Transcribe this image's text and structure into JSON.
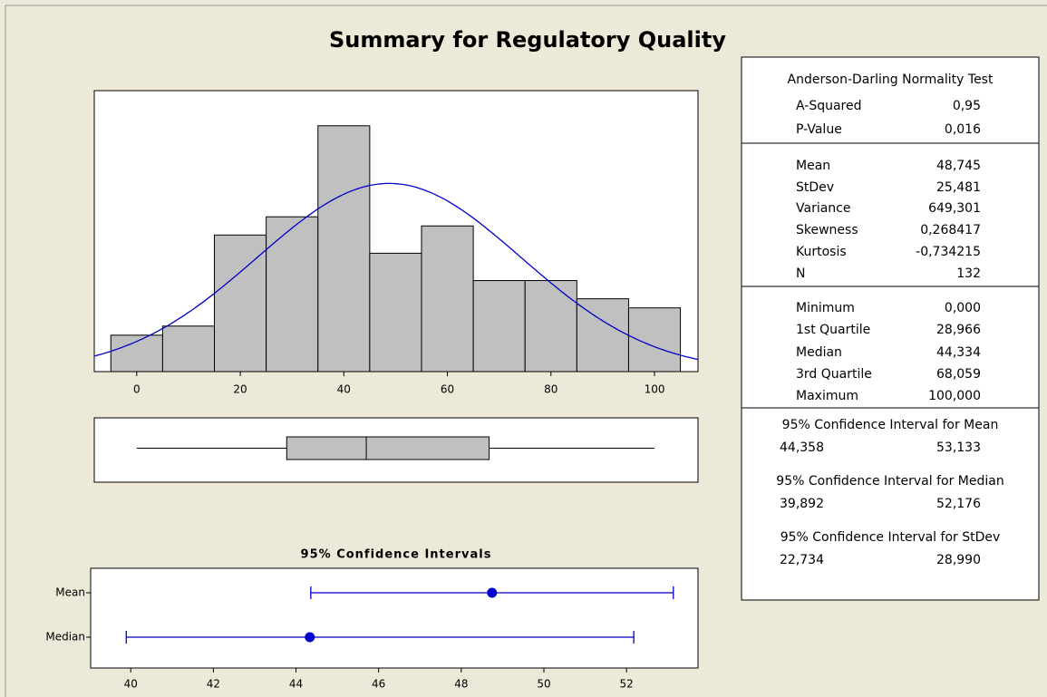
{
  "title": "Summary for Regulatory Quality",
  "chart_data": [
    {
      "type": "histogram",
      "bins": [
        -5,
        5,
        15,
        25,
        35,
        45,
        55,
        65,
        75,
        85,
        95,
        105
      ],
      "counts": [
        4,
        5,
        15,
        17,
        27,
        13,
        16,
        10,
        10,
        8,
        7
      ],
      "color": "#c0c0c0",
      "curve_color": "#0000cc",
      "xlim": [
        -8.2,
        108.4
      ],
      "xticks": [
        0,
        20,
        40,
        60,
        80,
        100
      ]
    },
    {
      "type": "box",
      "color": "#c0c0c0"
    },
    {
      "type": "interval",
      "title": "95% Confidence Intervals",
      "categories": [
        "Mean",
        "Median"
      ],
      "color": "#0000cc",
      "xlim": [
        39.03,
        53.73
      ],
      "xticks": [
        40,
        42,
        44,
        46,
        48,
        50,
        52
      ]
    }
  ],
  "summary": {
    "normality": {
      "title": "Anderson-Darling Normality Test",
      "rows": [
        {
          "label": "A-Squared",
          "value": {
            "value": 0.95,
            "label": "0,95"
          }
        },
        {
          "label": "P-Value",
          "value": {
            "value": 0.016,
            "label": "0,016"
          }
        }
      ]
    },
    "moments": {
      "rows": [
        {
          "label": "Mean",
          "value": {
            "value": 48.745,
            "label": "48,745"
          }
        },
        {
          "label": "StDev",
          "value": {
            "value": 25.481,
            "label": "25,481"
          }
        },
        {
          "label": "Variance",
          "value": {
            "value": 649.301,
            "label": "649,301"
          }
        },
        {
          "label": "Skewness",
          "value": {
            "value": 0.268417,
            "label": "0,268417"
          }
        },
        {
          "label": "Kurtosis",
          "value": {
            "value": -0.734215,
            "label": "-0,734215"
          }
        },
        {
          "label": "N",
          "value": 132
        }
      ]
    },
    "quartiles": {
      "rows": [
        {
          "label": "Minimum",
          "value": {
            "value": 0,
            "label": "0,000"
          }
        },
        {
          "label": "1st Quartile",
          "value": {
            "value": 28.966,
            "label": "28,966"
          }
        },
        {
          "label": "Median",
          "value": {
            "value": 44.334,
            "label": "44,334"
          }
        },
        {
          "label": "3rd Quartile",
          "value": {
            "value": 68.059,
            "label": "68,059"
          }
        },
        {
          "label": "Maximum",
          "value": {
            "value": 100,
            "label": "100,000"
          }
        }
      ]
    },
    "ci": [
      {
        "title": "95% Confidence Interval for Mean",
        "low": {
          "value": 44.358,
          "label": "44,358"
        },
        "high": {
          "value": 53.133,
          "label": "53,133"
        }
      },
      {
        "title": "95% Confidence Interval for Median",
        "low": {
          "value": 39.892,
          "label": "39,892"
        },
        "high": {
          "value": 52.176,
          "label": "52,176"
        }
      },
      {
        "title": "95% Confidence Interval for StDev",
        "low": {
          "value": 22.734,
          "label": "22,734"
        },
        "high": {
          "value": 28.99,
          "label": "28,990"
        }
      }
    ]
  }
}
